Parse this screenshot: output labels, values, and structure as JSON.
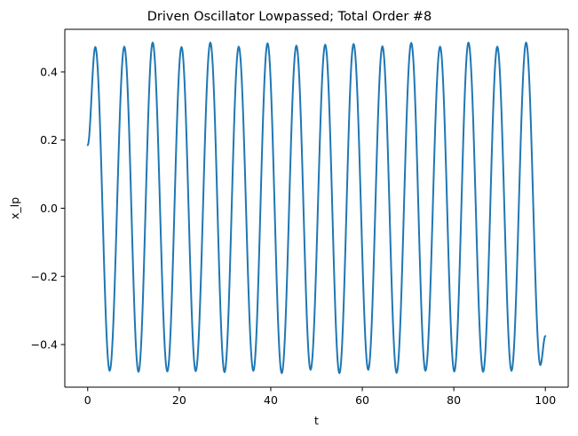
{
  "chart_data": {
    "type": "line",
    "title": "Driven Oscillator Lowpassed; Total Order #8",
    "xlabel": "t",
    "ylabel": "x_lp",
    "xlim": [
      -5,
      105
    ],
    "ylim": [
      -0.525,
      0.525
    ],
    "xticks": [
      0,
      20,
      40,
      60,
      80,
      100
    ],
    "xtick_labels": [
      "0",
      "20",
      "40",
      "60",
      "80",
      "100"
    ],
    "yticks": [
      -0.4,
      -0.2,
      0.0,
      0.2,
      0.4
    ],
    "ytick_labels": [
      "−0.4",
      "−0.2",
      "0.0",
      "0.2",
      "0.4"
    ],
    "grid": false,
    "legend": "none",
    "series": [
      {
        "color": "#1f77b4",
        "x": [
          0,
          1.67,
          4.8,
          8.0,
          11.1,
          14.2,
          17.4,
          20.5,
          23.6,
          26.8,
          29.9,
          33.0,
          36.2,
          39.3,
          42.4,
          45.6,
          48.7,
          51.9,
          55.0,
          58.1,
          61.3,
          64.4,
          67.5,
          70.7,
          73.8,
          77.0,
          80.1,
          83.2,
          86.4,
          89.5,
          92.6,
          95.8,
          98.9,
          100
        ],
        "y": [
          0.185,
          0.473,
          -0.477,
          0.474,
          -0.48,
          0.486,
          -0.479,
          0.473,
          -0.478,
          0.486,
          -0.481,
          0.474,
          -0.477,
          0.484,
          -0.484,
          0.477,
          -0.474,
          0.48,
          -0.484,
          0.482,
          -0.474,
          0.475,
          -0.483,
          0.485,
          -0.477,
          0.474,
          -0.479,
          0.486,
          -0.48,
          0.474,
          -0.477,
          0.486,
          -0.46,
          -0.375
        ]
      }
    ]
  }
}
